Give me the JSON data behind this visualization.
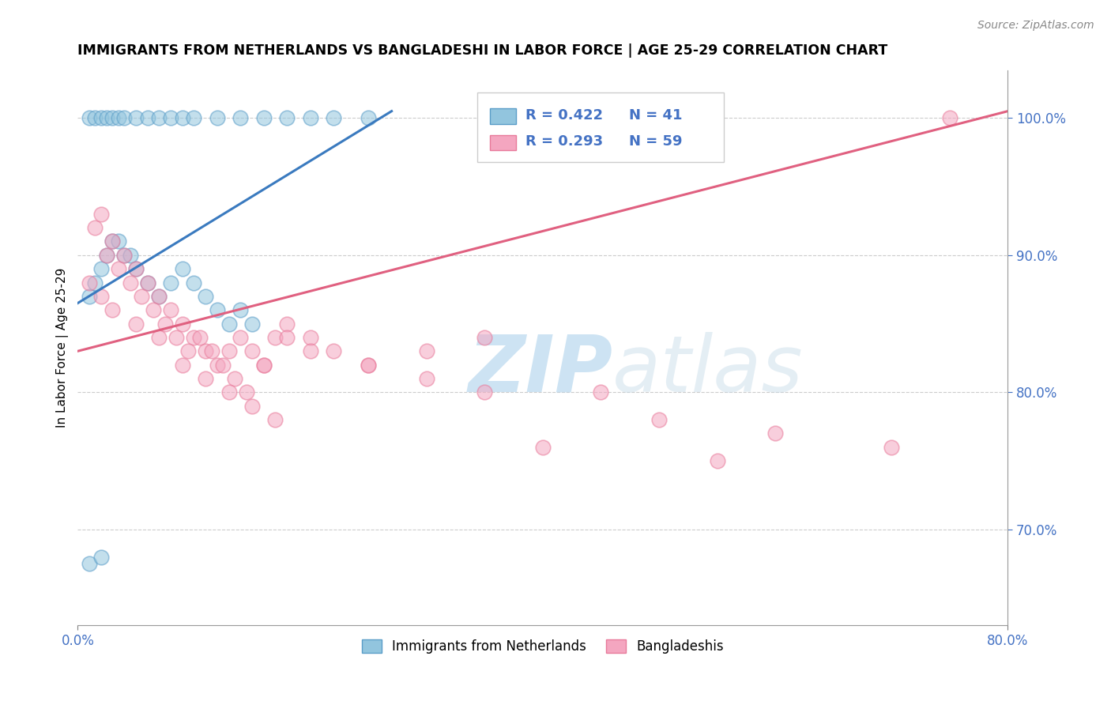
{
  "title": "IMMIGRANTS FROM NETHERLANDS VS BANGLADESHI IN LABOR FORCE | AGE 25-29 CORRELATION CHART",
  "source": "Source: ZipAtlas.com",
  "ylabel": "In Labor Force | Age 25-29",
  "xmin": 0.0,
  "xmax": 80.0,
  "ymin": 63.0,
  "ymax": 103.5,
  "yticks": [
    70.0,
    80.0,
    90.0,
    100.0
  ],
  "ytick_labels": [
    "70.0%",
    "80.0%",
    "90.0%",
    "100.0%"
  ],
  "legend_blue_r": "R = 0.422",
  "legend_blue_n": "N = 41",
  "legend_pink_r": "R = 0.293",
  "legend_pink_n": "N = 59",
  "series1_label": "Immigrants from Netherlands",
  "series2_label": "Bangladeshis",
  "blue_color": "#92c5de",
  "pink_color": "#f4a6c0",
  "blue_edge_color": "#5a9dc8",
  "pink_edge_color": "#e87a9a",
  "blue_line_color": "#3a7abf",
  "pink_line_color": "#e06080",
  "watermark_zip": "ZIP",
  "watermark_atlas": "atlas",
  "blue_scatter_x": [
    1.0,
    1.5,
    2.0,
    2.5,
    3.0,
    3.5,
    4.0,
    5.0,
    6.0,
    7.0,
    8.0,
    9.0,
    10.0,
    12.0,
    14.0,
    16.0,
    18.0,
    20.0,
    22.0,
    25.0,
    1.0,
    1.5,
    2.0,
    2.5,
    3.0,
    4.0,
    5.0,
    6.0,
    7.0,
    8.0,
    9.0,
    10.0,
    11.0,
    12.0,
    13.0,
    14.0,
    15.0,
    3.5,
    4.5,
    1.0,
    2.0
  ],
  "blue_scatter_y": [
    100.0,
    100.0,
    100.0,
    100.0,
    100.0,
    100.0,
    100.0,
    100.0,
    100.0,
    100.0,
    100.0,
    100.0,
    100.0,
    100.0,
    100.0,
    100.0,
    100.0,
    100.0,
    100.0,
    100.0,
    87.0,
    88.0,
    89.0,
    90.0,
    91.0,
    90.0,
    89.0,
    88.0,
    87.0,
    88.0,
    89.0,
    88.0,
    87.0,
    86.0,
    85.0,
    86.0,
    85.0,
    91.0,
    90.0,
    67.5,
    68.0
  ],
  "pink_scatter_x": [
    1.5,
    2.0,
    3.0,
    4.0,
    5.0,
    6.0,
    7.0,
    8.0,
    9.0,
    10.0,
    11.0,
    12.0,
    13.0,
    14.0,
    15.0,
    16.0,
    17.0,
    18.0,
    20.0,
    22.0,
    25.0,
    30.0,
    35.0,
    2.5,
    3.5,
    4.5,
    5.5,
    6.5,
    7.5,
    8.5,
    9.5,
    10.5,
    11.5,
    12.5,
    13.5,
    14.5,
    16.0,
    18.0,
    20.0,
    25.0,
    30.0,
    35.0,
    1.0,
    2.0,
    3.0,
    5.0,
    7.0,
    9.0,
    11.0,
    13.0,
    15.0,
    17.0,
    55.0,
    75.0,
    45.0,
    50.0,
    60.0,
    70.0,
    40.0
  ],
  "pink_scatter_y": [
    92.0,
    93.0,
    91.0,
    90.0,
    89.0,
    88.0,
    87.0,
    86.0,
    85.0,
    84.0,
    83.0,
    82.0,
    83.0,
    84.0,
    83.0,
    82.0,
    84.0,
    85.0,
    84.0,
    83.0,
    82.0,
    81.0,
    80.0,
    90.0,
    89.0,
    88.0,
    87.0,
    86.0,
    85.0,
    84.0,
    83.0,
    84.0,
    83.0,
    82.0,
    81.0,
    80.0,
    82.0,
    84.0,
    83.0,
    82.0,
    83.0,
    84.0,
    88.0,
    87.0,
    86.0,
    85.0,
    84.0,
    82.0,
    81.0,
    80.0,
    79.0,
    78.0,
    75.0,
    100.0,
    80.0,
    78.0,
    77.0,
    76.0,
    76.0
  ]
}
